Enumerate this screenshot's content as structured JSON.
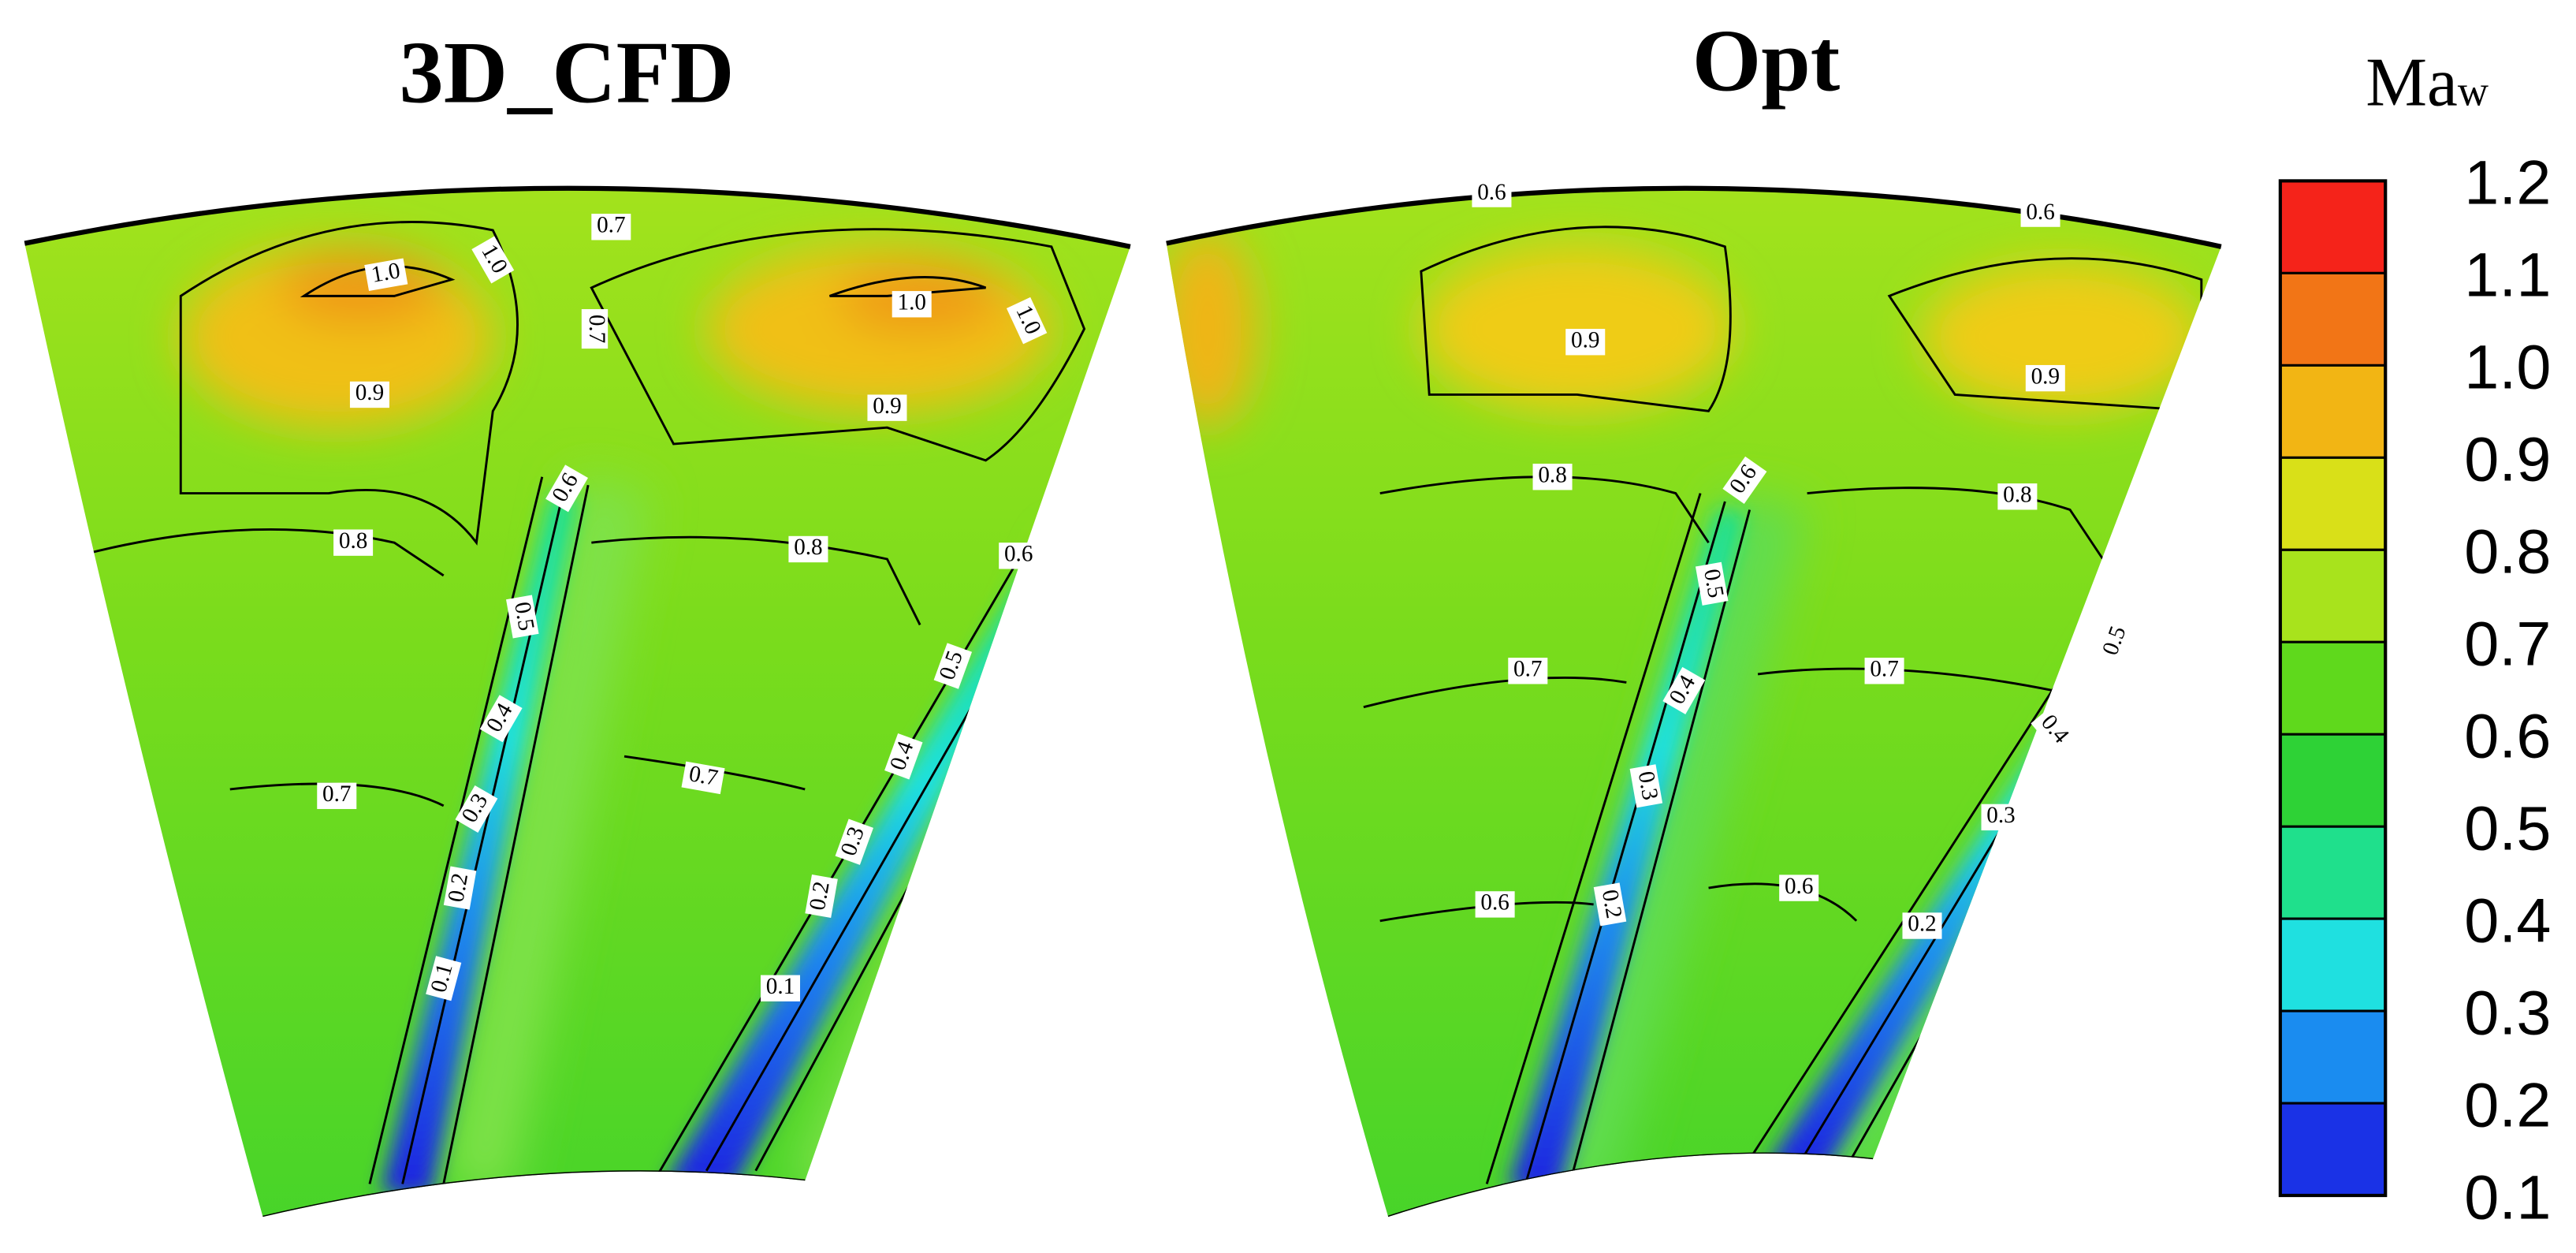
{
  "panels": [
    {
      "title": "3D_CFD",
      "contour_labels": [
        "1.0",
        "1.0",
        "0.7",
        "0.7",
        "1.0",
        "1.0",
        "0.9",
        "0.9",
        "0.6",
        "0.8",
        "0.8",
        "0.6",
        "0.5",
        "0.5",
        "0.4",
        "0.4",
        "0.7",
        "0.7",
        "0.3",
        "0.3",
        "0.2",
        "0.2",
        "0.1",
        "0.1"
      ]
    },
    {
      "title": "Opt",
      "contour_labels": [
        "0.6",
        "0.6",
        "0.9",
        "0.9",
        "0.8",
        "0.6",
        "0.8",
        "0.5",
        "0.7",
        "0.7",
        "0.4",
        "0.5",
        "0.3",
        "0.4",
        "0.3",
        "0.2",
        "0.6",
        "0.6",
        "0.2"
      ]
    }
  ],
  "colorbar": {
    "title": "Ma",
    "subscript": "w",
    "labels": [
      "1.2",
      "1.1",
      "1.0",
      "0.9",
      "0.8",
      "0.7",
      "0.6",
      "0.5",
      "0.4",
      "0.3",
      "0.2",
      "0.1"
    ],
    "colors": [
      "#f5231a",
      "#f27516",
      "#f2b514",
      "#d9e018",
      "#a8e31c",
      "#5fd91c",
      "#2ed236",
      "#1fe08c",
      "#1fe0e0",
      "#1a8cf0",
      "#1a32e6"
    ]
  }
}
